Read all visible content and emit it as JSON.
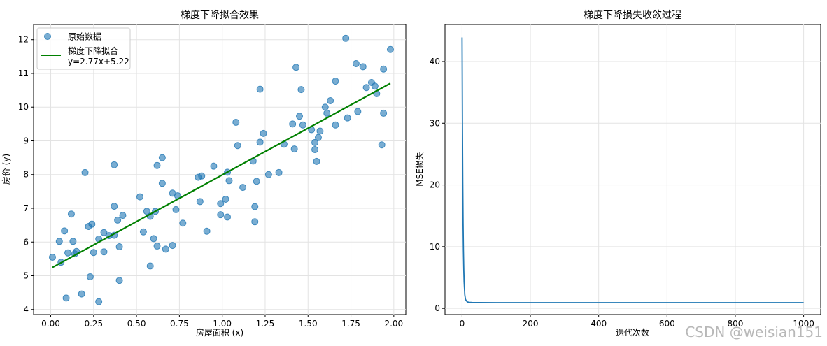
{
  "watermark": "CSDN @weisian151",
  "colors": {
    "points": "#1f77b4",
    "fit": "#008000",
    "loss": "#1f77b4",
    "grid": "#e3e3e3"
  },
  "chart_data": [
    {
      "type": "scatter",
      "title": "梯度下降拟合效果",
      "xlabel": "房屋面积 (x)",
      "ylabel": "房价 (y)",
      "xlim": [
        -0.1,
        2.07
      ],
      "ylim": [
        3.85,
        12.45
      ],
      "xticks": [
        "0.00",
        "0.25",
        "0.50",
        "0.75",
        "1.00",
        "1.25",
        "1.50",
        "1.75",
        "2.00"
      ],
      "xtick_values": [
        0,
        0.25,
        0.5,
        0.75,
        1,
        1.25,
        1.5,
        1.75,
        2
      ],
      "yticks": [
        "4",
        "5",
        "6",
        "7",
        "8",
        "9",
        "10",
        "11",
        "12"
      ],
      "ytick_values": [
        4,
        5,
        6,
        7,
        8,
        9,
        10,
        11,
        12
      ],
      "grid": true,
      "legend_position": "upper-left",
      "series": [
        {
          "name": "原始数据",
          "kind": "scatter",
          "points": [
            [
              0.01,
              5.55
            ],
            [
              0.05,
              6.02
            ],
            [
              0.06,
              5.4
            ],
            [
              0.08,
              6.33
            ],
            [
              0.09,
              4.34
            ],
            [
              0.1,
              5.68
            ],
            [
              0.12,
              6.83
            ],
            [
              0.13,
              6.02
            ],
            [
              0.14,
              5.65
            ],
            [
              0.15,
              5.72
            ],
            [
              0.18,
              4.46
            ],
            [
              0.2,
              8.06
            ],
            [
              0.22,
              6.46
            ],
            [
              0.23,
              4.97
            ],
            [
              0.24,
              6.53
            ],
            [
              0.25,
              5.69
            ],
            [
              0.28,
              6.09
            ],
            [
              0.28,
              4.23
            ],
            [
              0.31,
              6.28
            ],
            [
              0.31,
              5.71
            ],
            [
              0.34,
              6.19
            ],
            [
              0.37,
              6.2
            ],
            [
              0.37,
              7.06
            ],
            [
              0.37,
              8.29
            ],
            [
              0.39,
              6.65
            ],
            [
              0.4,
              4.86
            ],
            [
              0.4,
              5.86
            ],
            [
              0.42,
              6.79
            ],
            [
              0.52,
              7.34
            ],
            [
              0.54,
              6.3
            ],
            [
              0.56,
              6.91
            ],
            [
              0.58,
              5.29
            ],
            [
              0.58,
              6.76
            ],
            [
              0.6,
              6.1
            ],
            [
              0.61,
              6.91
            ],
            [
              0.62,
              5.88
            ],
            [
              0.62,
              8.27
            ],
            [
              0.65,
              7.74
            ],
            [
              0.65,
              8.5
            ],
            [
              0.67,
              5.79
            ],
            [
              0.71,
              7.45
            ],
            [
              0.71,
              5.9
            ],
            [
              0.73,
              6.96
            ],
            [
              0.74,
              7.37
            ],
            [
              0.77,
              6.56
            ],
            [
              0.86,
              7.92
            ],
            [
              0.87,
              7.2
            ],
            [
              0.88,
              7.96
            ],
            [
              0.91,
              6.32
            ],
            [
              0.95,
              8.25
            ],
            [
              0.99,
              6.81
            ],
            [
              0.99,
              7.14
            ],
            [
              1.02,
              7.27
            ],
            [
              1.03,
              6.74
            ],
            [
              1.03,
              8.07
            ],
            [
              1.04,
              7.82
            ],
            [
              1.08,
              9.55
            ],
            [
              1.09,
              8.86
            ],
            [
              1.12,
              7.62
            ],
            [
              1.18,
              8.4
            ],
            [
              1.19,
              7.05
            ],
            [
              1.19,
              6.6
            ],
            [
              1.2,
              7.8
            ],
            [
              1.22,
              10.53
            ],
            [
              1.22,
              8.96
            ],
            [
              1.24,
              9.22
            ],
            [
              1.27,
              8.0
            ],
            [
              1.33,
              8.06
            ],
            [
              1.36,
              8.9
            ],
            [
              1.41,
              9.5
            ],
            [
              1.42,
              8.76
            ],
            [
              1.43,
              11.18
            ],
            [
              1.45,
              9.73
            ],
            [
              1.46,
              10.52
            ],
            [
              1.47,
              9.47
            ],
            [
              1.52,
              9.33
            ],
            [
              1.54,
              8.74
            ],
            [
              1.54,
              8.95
            ],
            [
              1.55,
              8.39
            ],
            [
              1.56,
              9.1
            ],
            [
              1.57,
              9.29
            ],
            [
              1.6,
              10.0
            ],
            [
              1.61,
              9.82
            ],
            [
              1.63,
              10.19
            ],
            [
              1.66,
              10.77
            ],
            [
              1.66,
              9.47
            ],
            [
              1.72,
              12.04
            ],
            [
              1.73,
              9.68
            ],
            [
              1.78,
              11.29
            ],
            [
              1.79,
              9.87
            ],
            [
              1.82,
              11.2
            ],
            [
              1.84,
              10.58
            ],
            [
              1.87,
              10.73
            ],
            [
              1.89,
              10.62
            ],
            [
              1.9,
              10.4
            ],
            [
              1.93,
              8.88
            ],
            [
              1.94,
              9.82
            ],
            [
              1.94,
              11.13
            ],
            [
              1.98,
              11.71
            ]
          ]
        },
        {
          "name": "梯度下降拟合\ny=2.77x+5.22",
          "kind": "line",
          "x": [
            0.01,
            1.98
          ],
          "slope": 2.77,
          "intercept": 5.22
        }
      ]
    },
    {
      "type": "line",
      "title": "梯度下降损失收敛过程",
      "xlabel": "迭代次数",
      "ylabel": "MSE损失",
      "xlim": [
        -50,
        1050
      ],
      "ylim": [
        -1.0,
        46.0
      ],
      "xticks": [
        "0",
        "200",
        "400",
        "600",
        "800",
        "1000"
      ],
      "xtick_values": [
        0,
        200,
        400,
        600,
        800,
        1000
      ],
      "yticks": [
        "0",
        "10",
        "20",
        "30",
        "40"
      ],
      "ytick_values": [
        0,
        10,
        20,
        30,
        40
      ],
      "grid": true,
      "series": [
        {
          "name": "",
          "x": [
            0,
            1,
            2,
            3,
            4,
            5,
            6,
            8,
            10,
            15,
            20,
            30,
            50,
            100,
            200,
            400,
            600,
            800,
            1000
          ],
          "y": [
            43.9,
            30.0,
            20.5,
            13.8,
            9.3,
            6.3,
            4.3,
            2.2,
            1.45,
            1.05,
            0.98,
            0.95,
            0.93,
            0.92,
            0.92,
            0.92,
            0.92,
            0.92,
            0.92
          ]
        }
      ]
    }
  ]
}
